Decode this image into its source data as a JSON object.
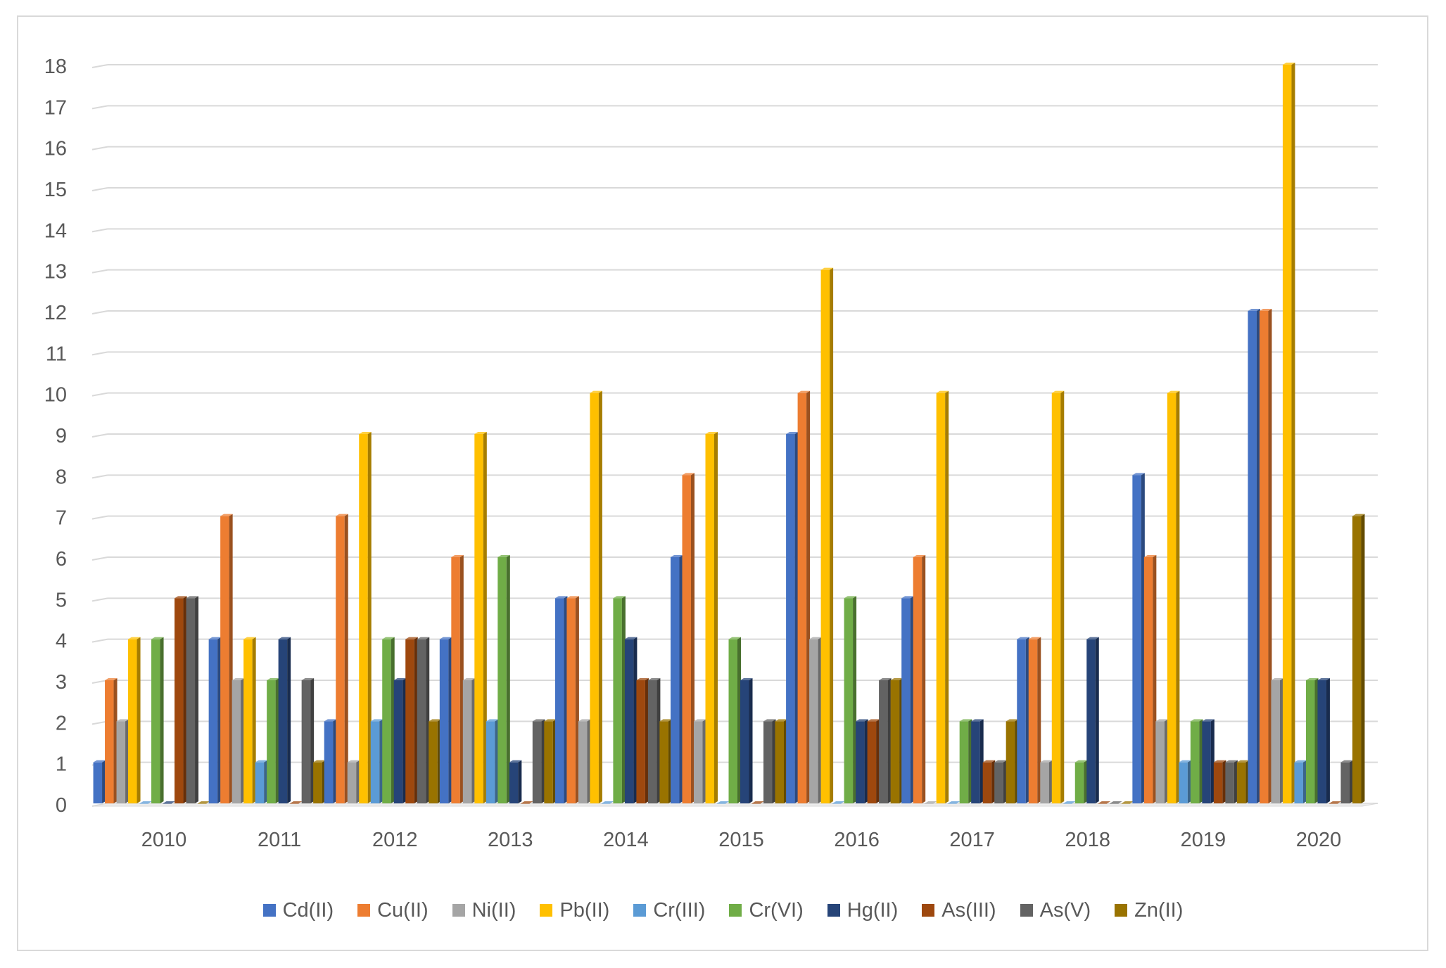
{
  "chart_data": {
    "type": "bar",
    "style": "3d-clustered-column",
    "categories": [
      "2010",
      "2011",
      "2012",
      "2013",
      "2014",
      "2015",
      "2016",
      "2017",
      "2018",
      "2019",
      "2020"
    ],
    "ylim": [
      0,
      18
    ],
    "yticks": [
      0,
      1,
      2,
      3,
      4,
      5,
      6,
      7,
      8,
      9,
      10,
      11,
      12,
      13,
      14,
      15,
      16,
      17,
      18
    ],
    "grid": true,
    "legend_position": "bottom",
    "series": [
      {
        "name": "Cd(II)",
        "color": "#4472C4",
        "values": [
          1,
          4,
          2,
          4,
          5,
          6,
          9,
          5,
          4,
          8,
          12
        ]
      },
      {
        "name": "Cu(II)",
        "color": "#ED7D31",
        "values": [
          3,
          7,
          7,
          6,
          5,
          8,
          10,
          6,
          4,
          6,
          12
        ]
      },
      {
        "name": "Ni(II)",
        "color": "#A5A5A5",
        "values": [
          2,
          3,
          1,
          3,
          2,
          2,
          4,
          0,
          1,
          2,
          3
        ]
      },
      {
        "name": "Pb(II)",
        "color": "#FFC000",
        "values": [
          4,
          4,
          9,
          9,
          10,
          9,
          13,
          10,
          10,
          10,
          18
        ]
      },
      {
        "name": "Cr(III)",
        "color": "#5B9BD5",
        "values": [
          0,
          1,
          2,
          2,
          0,
          0,
          0,
          0,
          0,
          1,
          1
        ]
      },
      {
        "name": "Cr(VI)",
        "color": "#70AD47",
        "values": [
          4,
          3,
          4,
          6,
          5,
          4,
          5,
          2,
          1,
          2,
          3
        ]
      },
      {
        "name": "Hg(II)",
        "color": "#264478",
        "values": [
          0,
          4,
          3,
          1,
          4,
          3,
          2,
          2,
          4,
          2,
          3
        ]
      },
      {
        "name": "As(III)",
        "color": "#9E480E",
        "values": [
          5,
          0,
          4,
          0,
          3,
          0,
          2,
          1,
          0,
          1,
          0
        ]
      },
      {
        "name": "As(V)",
        "color": "#636363",
        "values": [
          5,
          3,
          4,
          2,
          3,
          2,
          3,
          1,
          0,
          1,
          1
        ]
      },
      {
        "name": "Zn(II)",
        "color": "#997300",
        "values": [
          0,
          1,
          2,
          2,
          2,
          2,
          3,
          2,
          0,
          1,
          7
        ]
      }
    ]
  }
}
